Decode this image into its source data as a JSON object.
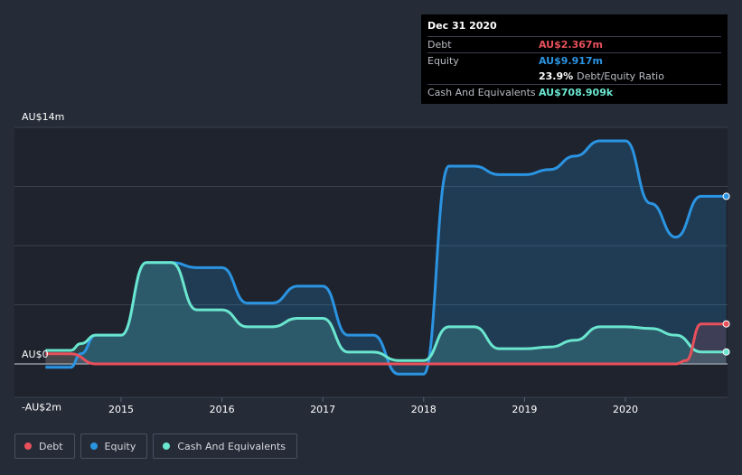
{
  "tooltip": {
    "date": "Dec 31 2020",
    "rows": [
      {
        "label": "Debt",
        "value": "AU$2.367m",
        "color": "#e8505b"
      },
      {
        "label": "Equity",
        "value": "AU$9.917m",
        "color": "#2b94e2"
      },
      {
        "label": "",
        "value": "23.9%",
        "extra": "Debt/Equity Ratio",
        "color": "#ffffff"
      },
      {
        "label": "Cash And Equivalents",
        "value": "AU$708.909k",
        "color": "#6ae6cf"
      }
    ]
  },
  "legend": [
    {
      "label": "Debt",
      "color": "#e8505b"
    },
    {
      "label": "Equity",
      "color": "#2b94e2"
    },
    {
      "label": "Cash And Equivalents",
      "color": "#6ae6cf"
    }
  ],
  "chart_data": {
    "type": "area",
    "y_tick_labels": [
      "AU$14m",
      "AU$0",
      "-AU$2m"
    ],
    "y_ticks": [
      14,
      0,
      -2
    ],
    "x_tick_labels": [
      "2015",
      "2016",
      "2017",
      "2018",
      "2019",
      "2020"
    ],
    "x_ticks": [
      2015,
      2016,
      2017,
      2018,
      2019,
      2020
    ],
    "xlim": [
      2014.0,
      2021.0
    ],
    "ylim": [
      -2,
      14
    ],
    "grid": true,
    "legend_position": "bottom-left",
    "series": [
      {
        "name": "Equity",
        "color": "#2b94e2",
        "x": [
          2014.25,
          2014.5,
          2014.6,
          2014.75,
          2015.0,
          2015.25,
          2015.5,
          2015.75,
          2016.0,
          2016.25,
          2016.5,
          2016.75,
          2017.0,
          2017.25,
          2017.5,
          2017.75,
          2018.0,
          2018.25,
          2018.5,
          2018.75,
          2019.0,
          2019.25,
          2019.5,
          2019.75,
          2020.0,
          2020.25,
          2020.5,
          2020.75,
          2021.0
        ],
        "values": [
          -0.2,
          -0.2,
          0.6,
          1.7,
          1.7,
          6.0,
          6.0,
          5.7,
          5.7,
          3.6,
          3.6,
          4.6,
          4.6,
          1.7,
          1.7,
          -0.6,
          -0.6,
          11.7,
          11.7,
          11.2,
          11.2,
          11.5,
          12.3,
          13.2,
          13.2,
          9.5,
          7.5,
          9.917,
          9.917
        ]
      },
      {
        "name": "Cash And Equivalents",
        "color": "#6ae6cf",
        "x": [
          2014.25,
          2014.5,
          2014.6,
          2014.75,
          2015.0,
          2015.25,
          2015.5,
          2015.75,
          2016.0,
          2016.25,
          2016.5,
          2016.75,
          2017.0,
          2017.25,
          2017.5,
          2017.75,
          2018.0,
          2018.25,
          2018.5,
          2018.75,
          2019.0,
          2019.25,
          2019.5,
          2019.75,
          2020.0,
          2020.25,
          2020.5,
          2020.75,
          2021.0
        ],
        "values": [
          0.8,
          0.8,
          1.2,
          1.7,
          1.7,
          6.0,
          6.0,
          3.2,
          3.2,
          2.2,
          2.2,
          2.7,
          2.7,
          0.7,
          0.7,
          0.2,
          0.2,
          2.2,
          2.2,
          0.9,
          0.9,
          1.0,
          1.4,
          2.2,
          2.2,
          2.1,
          1.7,
          0.709,
          0.709
        ]
      },
      {
        "name": "Debt",
        "color": "#e8505b",
        "x": [
          2014.25,
          2014.5,
          2014.75,
          2015.0,
          2020.5,
          2020.6,
          2020.75,
          2021.0
        ],
        "values": [
          0.6,
          0.6,
          0.0,
          0.0,
          0.0,
          0.2,
          2.367,
          2.367
        ]
      }
    ]
  }
}
